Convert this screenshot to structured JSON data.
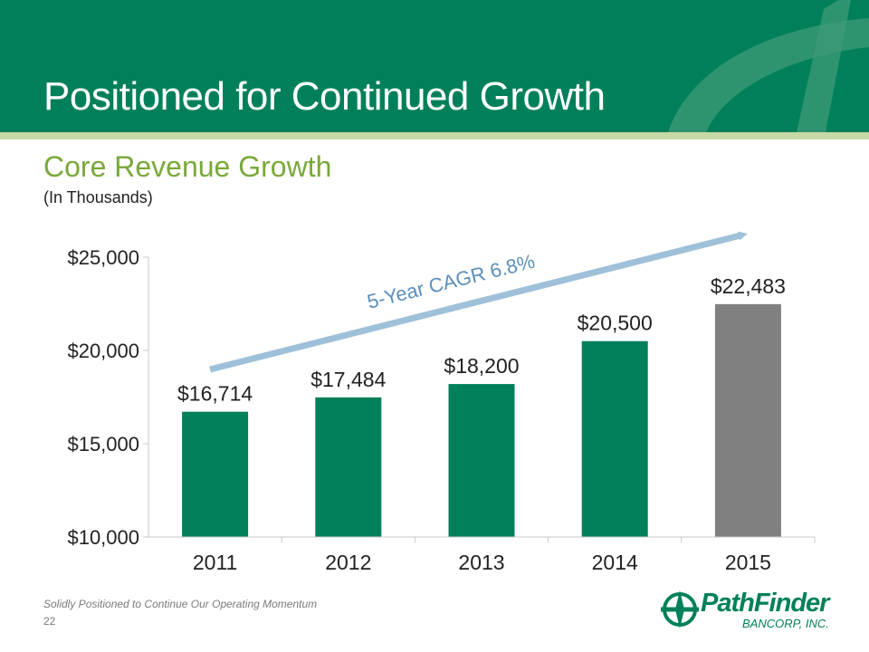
{
  "slide": {
    "title": "Positioned for Continued Growth",
    "subtitle": "Core Revenue Growth",
    "unit_note": "(In Thousands)",
    "footer_tagline": "Solidly Positioned to Continue Our Operating Momentum",
    "page_number": "22"
  },
  "logo": {
    "name": "PathFinder",
    "sub": "BANCORP, INC."
  },
  "colors": {
    "brand_green": "#00805a",
    "accent_light_green": "#c7d9a4",
    "subtitle_green": "#7aa83a",
    "bar_green": "#00805a",
    "bar_gray": "#808080",
    "arrow_blue": "#9fc0d9"
  },
  "chart_data": {
    "type": "bar",
    "categories": [
      "2011",
      "2012",
      "2013",
      "2014",
      "2015"
    ],
    "values": [
      16714,
      17484,
      18200,
      20500,
      22483
    ],
    "value_labels": [
      "$16,714",
      "$17,484",
      "$18,200",
      "$20,500",
      "$22,483"
    ],
    "highlight_last": true,
    "ylim": [
      10000,
      25000
    ],
    "yticks": [
      10000,
      15000,
      20000,
      25000
    ],
    "ytick_labels": [
      "$10,000",
      "$15,000",
      "$20,000",
      "$25,000"
    ],
    "title": "Core Revenue Growth",
    "xlabel": "",
    "ylabel": "",
    "grid": false,
    "annotation": "5-Year CAGR 6.8%"
  }
}
